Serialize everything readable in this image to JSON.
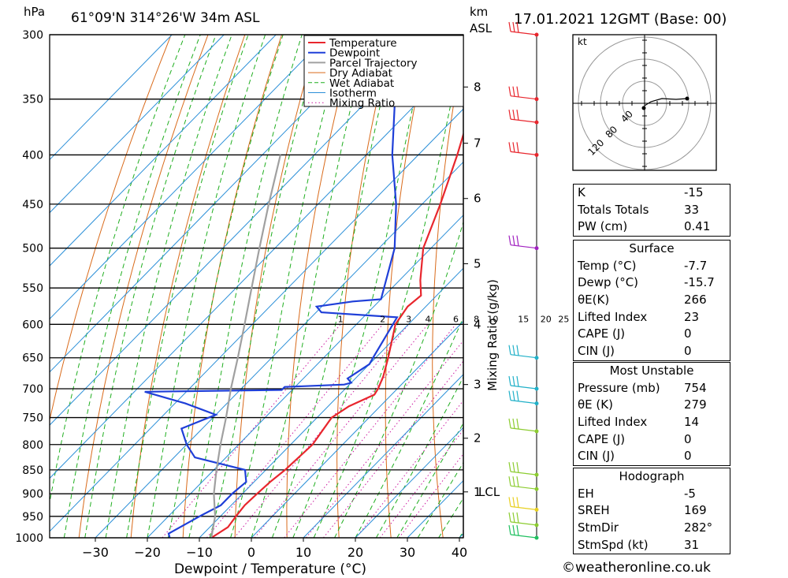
{
  "header": {
    "hpa_label": "hPa",
    "location": "61°09'N  314°26'W  34m  ASL",
    "km_label": "km",
    "asl_label": "ASL",
    "date": "17.01.2021  12GMT  (Base: 00)"
  },
  "chart_data": {
    "type": "line",
    "subtype": "skew-T log-P sounding",
    "xlabel": "Dewpoint / Temperature (°C)",
    "ylabel": "hPa",
    "right_label": "Mixing Ratio (g/kg)",
    "x_ticks": [
      -30,
      -20,
      -10,
      0,
      10,
      20,
      30,
      40
    ],
    "pressure_levels": [
      300,
      350,
      400,
      450,
      500,
      550,
      600,
      650,
      700,
      750,
      800,
      850,
      900,
      950,
      1000
    ],
    "km_ticks": [
      {
        "label": "8",
        "p": 340
      },
      {
        "label": "7",
        "p": 389
      },
      {
        "label": "6",
        "p": 444
      },
      {
        "label": "5",
        "p": 519
      },
      {
        "label": "4",
        "p": 600
      },
      {
        "label": "3",
        "p": 693
      },
      {
        "label": "2",
        "p": 788
      },
      {
        "label": "1",
        "p": 896
      }
    ],
    "lcl_label": "LCL",
    "mixing_ratio_labels": [
      "1",
      "2",
      "3",
      "4",
      "6",
      "8",
      "10",
      "15",
      "20",
      "25"
    ],
    "mixing_ratio_values": [
      1,
      2,
      3,
      4,
      6,
      8,
      10,
      15,
      20,
      25
    ],
    "mixing_ratio_label_p": 600,
    "isotherm_label_values": [],
    "legend": [
      "Temperature",
      "Dewpoint",
      "Parcel Trajectory",
      "Dry Adiabat",
      "Wet Adiabat",
      "Isotherm",
      "Mixing Ratio"
    ],
    "colors": {
      "temperature": "#e8262d",
      "dewpoint": "#1f3fd8",
      "parcel": "#a0a0a0",
      "dry_adiabat": "#d96a1a",
      "wet_adiabat": "#1fae1f",
      "isotherm": "#2b8fd8",
      "mixing_ratio": "#cc1aa0"
    },
    "series": [
      {
        "name": "Temperature",
        "points": [
          {
            "p": 1000,
            "t": -7.7
          },
          {
            "p": 975,
            "t": -6.5
          },
          {
            "p": 950,
            "t": -7.0
          },
          {
            "p": 925,
            "t": -7.4
          },
          {
            "p": 900,
            "t": -7.2
          },
          {
            "p": 875,
            "t": -6.9
          },
          {
            "p": 850,
            "t": -6.3
          },
          {
            "p": 800,
            "t": -5.8
          },
          {
            "p": 750,
            "t": -7.2
          },
          {
            "p": 730,
            "t": -6.0
          },
          {
            "p": 710,
            "t": -3.3
          },
          {
            "p": 700,
            "t": -3.7
          },
          {
            "p": 680,
            "t": -5.0
          },
          {
            "p": 650,
            "t": -7.6
          },
          {
            "p": 600,
            "t": -12.5
          },
          {
            "p": 575,
            "t": -13.5
          },
          {
            "p": 560,
            "t": -13.0
          },
          {
            "p": 540,
            "t": -16.0
          },
          {
            "p": 500,
            "t": -21.5
          },
          {
            "p": 450,
            "t": -26.5
          },
          {
            "p": 400,
            "t": -32.5
          },
          {
            "p": 350,
            "t": -39.8
          },
          {
            "p": 310,
            "t": -46.0
          },
          {
            "p": 300,
            "t": -47.5
          }
        ]
      },
      {
        "name": "Dewpoint",
        "points": [
          {
            "p": 1000,
            "t": -15.7
          },
          {
            "p": 990,
            "t": -16.7
          },
          {
            "p": 950,
            "t": -14.0
          },
          {
            "p": 925,
            "t": -12.0
          },
          {
            "p": 900,
            "t": -12.0
          },
          {
            "p": 875,
            "t": -11.5
          },
          {
            "p": 850,
            "t": -14.0
          },
          {
            "p": 825,
            "t": -26.0
          },
          {
            "p": 800,
            "t": -30.0
          },
          {
            "p": 770,
            "t": -34.0
          },
          {
            "p": 745,
            "t": -30.0
          },
          {
            "p": 725,
            "t": -38.0
          },
          {
            "p": 705,
            "t": -48.0
          },
          {
            "p": 702,
            "t": -22.0
          },
          {
            "p": 697,
            "t": -22.0
          },
          {
            "p": 693,
            "t": -11.0
          },
          {
            "p": 690,
            "t": -10.0
          },
          {
            "p": 683,
            "t": -11.5
          },
          {
            "p": 660,
            "t": -10.0
          },
          {
            "p": 650,
            "t": -10.5
          },
          {
            "p": 590,
            "t": -13.5
          },
          {
            "p": 583,
            "t": -29.0
          },
          {
            "p": 575,
            "t": -31.0
          },
          {
            "p": 568,
            "t": -25.0
          },
          {
            "p": 565,
            "t": -20.0
          },
          {
            "p": 500,
            "t": -27.0
          },
          {
            "p": 450,
            "t": -35.0
          },
          {
            "p": 400,
            "t": -45.0
          },
          {
            "p": 350,
            "t": -55.0
          },
          {
            "p": 320,
            "t": -62.0
          },
          {
            "p": 310,
            "t": -63.5
          },
          {
            "p": 300,
            "t": -64.0
          }
        ]
      },
      {
        "name": "Parcel Trajectory",
        "points": [
          {
            "p": 1000,
            "t": -7.7
          },
          {
            "p": 950,
            "t": -11.0
          },
          {
            "p": 900,
            "t": -15.5
          },
          {
            "p": 850,
            "t": -19.5
          },
          {
            "p": 800,
            "t": -23.5
          },
          {
            "p": 750,
            "t": -27.5
          },
          {
            "p": 700,
            "t": -32.0
          },
          {
            "p": 650,
            "t": -36.5
          },
          {
            "p": 600,
            "t": -41.5
          },
          {
            "p": 550,
            "t": -47.0
          },
          {
            "p": 500,
            "t": -53.0
          },
          {
            "p": 450,
            "t": -59.5
          },
          {
            "p": 400,
            "t": -66.5
          }
        ]
      }
    ]
  },
  "wind_profile": {
    "barbs": [
      {
        "p": 300,
        "color": "#e8262d"
      },
      {
        "p": 350,
        "color": "#e8262d"
      },
      {
        "p": 370,
        "color": "#e8262d"
      },
      {
        "p": 400,
        "color": "#e8262d"
      },
      {
        "p": 500,
        "color": "#a020c0"
      },
      {
        "p": 650,
        "color": "#20b0c8"
      },
      {
        "p": 700,
        "color": "#20b0c8"
      },
      {
        "p": 725,
        "color": "#20b0c8"
      },
      {
        "p": 775,
        "color": "#8ccc30"
      },
      {
        "p": 860,
        "color": "#8ccc30"
      },
      {
        "p": 890,
        "color": "#8ccc30"
      },
      {
        "p": 935,
        "color": "#e8d020"
      },
      {
        "p": 970,
        "color": "#8ccc30"
      },
      {
        "p": 1000,
        "color": "#20c060"
      }
    ]
  },
  "hodograph": {
    "unit_label": "kt",
    "ring_labels": [
      "40",
      "80",
      "120"
    ]
  },
  "indices": {
    "rows": [
      {
        "label": "K",
        "value": "-15"
      },
      {
        "label": "Totals Totals",
        "value": "33"
      },
      {
        "label": "PW (cm)",
        "value": "0.41"
      }
    ]
  },
  "surface": {
    "title": "Surface",
    "rows": [
      {
        "label": "Temp (°C)",
        "value": "-7.7"
      },
      {
        "label": "Dewp (°C)",
        "value": "-15.7"
      },
      {
        "label": "θE(K)",
        "value": "266"
      },
      {
        "label": "Lifted Index",
        "value": "23"
      },
      {
        "label": "CAPE (J)",
        "value": "0"
      },
      {
        "label": "CIN (J)",
        "value": "0"
      }
    ]
  },
  "most_unstable": {
    "title": "Most Unstable",
    "rows": [
      {
        "label": "Pressure (mb)",
        "value": "754"
      },
      {
        "label": "θE (K)",
        "value": "279"
      },
      {
        "label": "Lifted Index",
        "value": "14"
      },
      {
        "label": "CAPE (J)",
        "value": "0"
      },
      {
        "label": "CIN (J)",
        "value": "0"
      }
    ]
  },
  "hodograph_table": {
    "title": "Hodograph",
    "rows": [
      {
        "label": "EH",
        "value": "-5"
      },
      {
        "label": "SREH",
        "value": "169"
      },
      {
        "label": "StmDir",
        "value": "282°"
      },
      {
        "label": "StmSpd (kt)",
        "value": "31"
      }
    ]
  },
  "credit": "©weatheronline.co.uk"
}
